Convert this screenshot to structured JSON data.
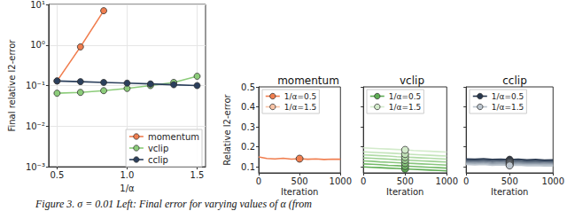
{
  "caption": "Figure 3. σ = 0.01 Left: Final error for varying values of α (from",
  "chart_data": [
    {
      "type": "line",
      "xlabel": "1/α",
      "ylabel": "Final relative l2-error",
      "x": [
        0.5,
        0.667,
        0.833,
        1.0,
        1.167,
        1.333,
        1.5
      ],
      "xlim": [
        0.44,
        1.56
      ],
      "xticks": [
        {
          "value": 0.5,
          "label": "0.5"
        },
        {
          "value": 1.0,
          "label": "1.0"
        },
        {
          "value": 1.5,
          "label": "1.5"
        }
      ],
      "ylim": [
        0.001,
        10
      ],
      "yticks": [
        {
          "value": 0.001,
          "label": "10⁻³"
        },
        {
          "value": 0.01,
          "label": "10⁻²"
        },
        {
          "value": 0.1,
          "label": "10⁻¹"
        },
        {
          "value": 1,
          "label": "10⁰"
        },
        {
          "value": 10,
          "label": "10¹"
        }
      ],
      "log": "y",
      "grid": true,
      "legend": "lower right",
      "marker": "circle",
      "series": [
        {
          "name": "momentum",
          "color": "#f07e4f",
          "values": [
            0.13,
            0.9,
            7,
            null,
            null,
            null,
            null
          ]
        },
        {
          "name": "vclip",
          "color": "#8ccc7a",
          "values": [
            0.065,
            0.068,
            0.075,
            0.085,
            0.1,
            0.12,
            0.17
          ]
        },
        {
          "name": "cclip",
          "color": "#2b3f5c",
          "values": [
            0.13,
            0.125,
            0.12,
            0.115,
            0.11,
            0.105,
            0.1
          ]
        }
      ]
    },
    {
      "type": "line",
      "title": "momentum",
      "xlabel": "Iteration",
      "ylabel": "Relative l2-error",
      "x": [
        0,
        100,
        200,
        300,
        400,
        500,
        600,
        700,
        800,
        900,
        1000
      ],
      "xlim": [
        0,
        1000
      ],
      "xticks": [
        0,
        500,
        1000
      ],
      "ylim": [
        0.07,
        0.5
      ],
      "yticks": [
        0.1,
        0.2,
        0.3,
        0.4,
        0.5
      ],
      "grid": false,
      "legend": "upper left",
      "marker": "circle",
      "series": [
        {
          "name": "1/α=0.5",
          "color": "#f07e4f",
          "values": [
            0.15,
            0.142,
            0.14,
            0.143,
            0.139,
            0.141,
            0.138,
            0.14,
            0.137,
            0.139,
            0.138
          ]
        },
        {
          "name": "1/α=1.5",
          "color": "#f9c3a5",
          "values": [
            null,
            null,
            null,
            null,
            null,
            null,
            null,
            null,
            null,
            null,
            null
          ]
        }
      ]
    },
    {
      "type": "line",
      "title": "vclip",
      "xlabel": "Iteration",
      "x": [
        0,
        100,
        200,
        300,
        400,
        500,
        600,
        700,
        800,
        900,
        1000
      ],
      "xlim": [
        0,
        1000
      ],
      "xticks": [
        0,
        500,
        1000
      ],
      "ylim": [
        0.07,
        0.5
      ],
      "yticks": [
        0.1,
        0.2,
        0.3,
        0.4,
        0.5
      ],
      "tick_labels": "x",
      "grid": false,
      "legend": "upper left",
      "marker": "circle",
      "series": [
        {
          "name": "1/α=0.5",
          "color": "#5fae55",
          "values": [
            0.1,
            0.098,
            0.096,
            0.094,
            0.092,
            0.09,
            0.088,
            0.086,
            0.084,
            0.082,
            0.08
          ]
        },
        {
          "color": "#73ba68",
          "values": [
            0.115,
            0.113,
            0.111,
            0.108,
            0.106,
            0.104,
            0.102,
            0.1,
            0.098,
            0.096,
            0.094
          ]
        },
        {
          "color": "#88c67d",
          "values": [
            0.13,
            0.128,
            0.125,
            0.123,
            0.121,
            0.119,
            0.117,
            0.115,
            0.113,
            0.111,
            0.109
          ]
        },
        {
          "color": "#9dd192",
          "values": [
            0.145,
            0.143,
            0.141,
            0.139,
            0.136,
            0.134,
            0.132,
            0.13,
            0.128,
            0.126,
            0.124
          ]
        },
        {
          "color": "#b1dca7",
          "values": [
            0.16,
            0.158,
            0.156,
            0.154,
            0.151,
            0.149,
            0.147,
            0.145,
            0.143,
            0.141,
            0.139
          ]
        },
        {
          "color": "#c3e4ba",
          "values": [
            0.175,
            0.173,
            0.171,
            0.169,
            0.167,
            0.164,
            0.162,
            0.16,
            0.158,
            0.156,
            0.154
          ]
        },
        {
          "name": "1/α=1.5",
          "color": "#d3ebcb",
          "values": [
            0.195,
            0.193,
            0.191,
            0.189,
            0.187,
            0.185,
            0.182,
            0.18,
            0.178,
            0.176,
            0.174
          ]
        }
      ]
    },
    {
      "type": "line",
      "title": "cclip",
      "xlabel": "Iteration",
      "x": [
        0,
        100,
        200,
        300,
        400,
        500,
        600,
        700,
        800,
        900,
        1000
      ],
      "xlim": [
        0,
        1000
      ],
      "xticks": [
        0,
        500,
        1000
      ],
      "ylim": [
        0.07,
        0.5
      ],
      "yticks": [
        0.1,
        0.2,
        0.3,
        0.4,
        0.5
      ],
      "tick_labels": "x",
      "grid": false,
      "legend": "upper left",
      "marker": "circle",
      "series": [
        {
          "name": "1/α=0.5",
          "color": "#26364d",
          "values": [
            0.14,
            0.138,
            0.141,
            0.137,
            0.139,
            0.136,
            0.138,
            0.135,
            0.137,
            0.134,
            0.135
          ]
        },
        {
          "color": "#3f4f64",
          "values": [
            0.135,
            0.133,
            0.136,
            0.132,
            0.134,
            0.131,
            0.133,
            0.13,
            0.132,
            0.129,
            0.13
          ]
        },
        {
          "color": "#5a697c",
          "values": [
            0.13,
            0.128,
            0.131,
            0.127,
            0.129,
            0.126,
            0.128,
            0.125,
            0.127,
            0.124,
            0.125
          ]
        },
        {
          "color": "#758293",
          "values": [
            0.125,
            0.123,
            0.126,
            0.122,
            0.124,
            0.121,
            0.123,
            0.12,
            0.121,
            0.119,
            0.12
          ]
        },
        {
          "color": "#8e9aa8",
          "values": [
            0.12,
            0.118,
            0.121,
            0.117,
            0.119,
            0.116,
            0.118,
            0.115,
            0.116,
            0.114,
            0.115
          ]
        },
        {
          "color": "#a6b1bc",
          "values": [
            0.116,
            0.114,
            0.116,
            0.112,
            0.114,
            0.111,
            0.113,
            0.11,
            0.111,
            0.109,
            0.11
          ]
        },
        {
          "name": "1/α=1.5",
          "color": "#bcc5ce",
          "values": [
            0.112,
            0.11,
            0.112,
            0.108,
            0.11,
            0.107,
            0.109,
            0.106,
            0.107,
            0.105,
            0.105
          ]
        }
      ]
    }
  ]
}
